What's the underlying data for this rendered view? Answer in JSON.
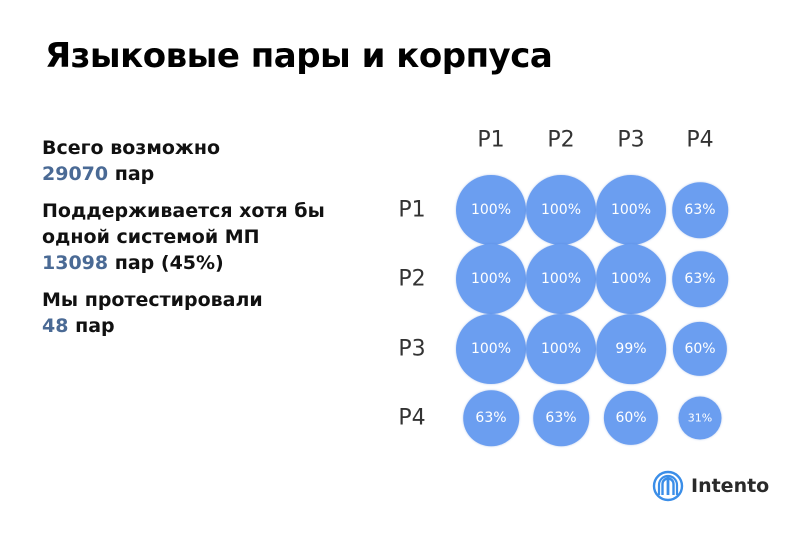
{
  "slide": {
    "title": "Языковые пары и корпуса"
  },
  "stats": {
    "total_label": "Всего возможно",
    "total_number": "29070",
    "total_unit": "пар",
    "supported_label_line1": "Поддерживается хотя бы",
    "supported_label_line2": "одной системой МП",
    "supported_number": "13098",
    "supported_unit": "пар (45%)",
    "tested_label": "Мы протестировали",
    "tested_number": "48",
    "tested_unit": "пар"
  },
  "matrix": {
    "columns": [
      "P1",
      "P2",
      "P3",
      "P4"
    ],
    "rows": [
      "P1",
      "P2",
      "P3",
      "P4"
    ],
    "cells": [
      [
        "100%",
        "100%",
        "100%",
        "63%"
      ],
      [
        "100%",
        "100%",
        "100%",
        "63%"
      ],
      [
        "100%",
        "100%",
        "99%",
        "60%"
      ],
      [
        "63%",
        "63%",
        "60%",
        "31%"
      ]
    ],
    "values": [
      [
        100,
        100,
        100,
        63
      ],
      [
        100,
        100,
        100,
        63
      ],
      [
        100,
        100,
        99,
        60
      ],
      [
        63,
        63,
        60,
        31
      ]
    ],
    "bubble_color": "#6b9ef0"
  },
  "logo": {
    "text": "Intento",
    "icon": "intento-logo-icon",
    "color": "#3b8ee8"
  }
}
